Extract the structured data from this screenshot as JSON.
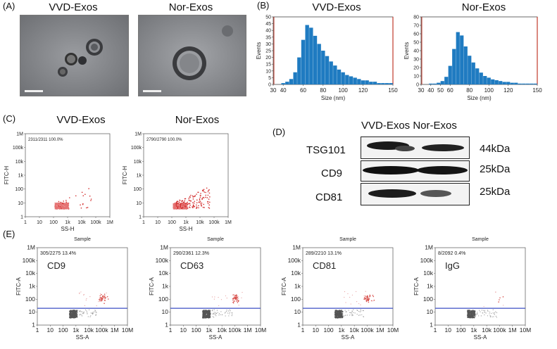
{
  "panelA": {
    "label": "(A)",
    "titles": [
      "VVD-Exos",
      "Nor-Exos"
    ]
  },
  "panelB": {
    "label": "(B)",
    "titles": [
      "VVD-Exos",
      "Nor-Exos"
    ],
    "x_label": "Size (nm)",
    "y_label": "Events"
  },
  "panelC": {
    "label": "(C)",
    "titles": [
      "VVD-Exos",
      "Nor-Exos"
    ],
    "gates": [
      "2311/2311  100.0%",
      "2790/2790  100.0%"
    ],
    "x_label": "SS-H",
    "y_label": "FITC-H"
  },
  "panelD": {
    "label": "(D)",
    "header": "VVD-Exos Nor-Exos",
    "rows": [
      {
        "protein": "TSG101",
        "mw": "44kDa"
      },
      {
        "protein": "CD9",
        "mw": "25kDa"
      },
      {
        "protein": "CD81",
        "mw": "25kDa"
      }
    ]
  },
  "panelE": {
    "label": "(E)",
    "sample_title": "Sample",
    "x_label": "SS-A",
    "y_label": "FITC-A",
    "plots": [
      {
        "marker": "CD9",
        "gate": "305/2275  13.4%"
      },
      {
        "marker": "CD63",
        "gate": "290/2361  12.3%"
      },
      {
        "marker": "CD81",
        "gate": "289/2210  13.1%"
      },
      {
        "marker": "IgG",
        "gate": "8/2092  0.4%"
      }
    ]
  },
  "chart_data": [
    {
      "type": "bar",
      "title": "VVD-Exos",
      "xlabel": "Size (nm)",
      "ylabel": "Events",
      "xlim": [
        30,
        150
      ],
      "ylim": [
        0,
        50
      ],
      "x_ticks": [
        "30",
        "40",
        "60",
        "80",
        "100",
        "120",
        "150"
      ],
      "y_ticks": [
        "0",
        "5",
        "10",
        "15",
        "20",
        "25",
        "30",
        "35",
        "40",
        "45",
        "50"
      ],
      "x": [
        40,
        44,
        48,
        52,
        56,
        60,
        64,
        68,
        72,
        76,
        80,
        84,
        88,
        92,
        96,
        100,
        104,
        108,
        112,
        116,
        120,
        124,
        128,
        132,
        136,
        140,
        144,
        148
      ],
      "values": [
        1,
        2,
        4,
        9,
        20,
        33,
        44,
        42,
        36,
        30,
        25,
        21,
        17,
        14,
        11,
        9,
        7,
        6,
        5,
        4,
        3,
        3,
        2,
        2,
        1,
        1,
        1,
        1
      ]
    },
    {
      "type": "bar",
      "title": "Nor-Exos",
      "xlabel": "Size (nm)",
      "ylabel": "Events",
      "xlim": [
        30,
        150
      ],
      "ylim": [
        0,
        80
      ],
      "x_ticks": [
        "30",
        "40",
        "50",
        "60",
        "80",
        "100",
        "120",
        "150"
      ],
      "y_ticks": [
        "0",
        "10",
        "20",
        "30",
        "40",
        "50",
        "60",
        "70",
        "80"
      ],
      "x": [
        40,
        44,
        48,
        52,
        56,
        60,
        64,
        68,
        72,
        76,
        80,
        84,
        88,
        92,
        96,
        100,
        104,
        108,
        112,
        116,
        120,
        124,
        128,
        132,
        136,
        140,
        144,
        148
      ],
      "values": [
        1,
        1,
        2,
        4,
        9,
        22,
        42,
        62,
        58,
        45,
        34,
        26,
        19,
        14,
        10,
        8,
        6,
        5,
        4,
        3,
        3,
        2,
        2,
        1,
        1,
        1,
        1,
        1
      ]
    },
    {
      "type": "scatter",
      "title": "VVD-Exos",
      "xlabel": "SS-H",
      "ylabel": "FITC-H",
      "x_ticks": [
        "1",
        "10",
        "100",
        "1k",
        "10k",
        "100k",
        "1M"
      ],
      "y_ticks": [
        "1",
        "10",
        "100",
        "1k",
        "10k",
        "100k",
        "1M"
      ],
      "gate_label": "2311/2311  100.0%"
    },
    {
      "type": "scatter",
      "title": "Nor-Exos",
      "xlabel": "SS-H",
      "ylabel": "FITC-H",
      "x_ticks": [
        "1",
        "10",
        "100",
        "1k",
        "10k",
        "100k",
        "1M"
      ],
      "y_ticks": [
        "1",
        "10",
        "100",
        "1k",
        "10k",
        "100k",
        "1M"
      ],
      "gate_label": "2790/2790  100.0%"
    },
    {
      "type": "scatter",
      "title": "Sample",
      "xlabel": "SS-A",
      "ylabel": "FITC-A",
      "x_ticks": [
        "1",
        "10",
        "100",
        "1k",
        "10k",
        "100k",
        "1M",
        "10M"
      ],
      "y_ticks": [
        "1",
        "10",
        "100",
        "1k",
        "10k",
        "100k",
        "1M"
      ],
      "gate_threshold": 20,
      "series": [
        {
          "name": "CD9",
          "gate_label": "305/2275  13.4%"
        },
        {
          "name": "CD63",
          "gate_label": "290/2361  12.3%"
        },
        {
          "name": "CD81",
          "gate_label": "289/2210  13.1%"
        },
        {
          "name": "IgG",
          "gate_label": "8/2092  0.4%"
        }
      ]
    }
  ]
}
